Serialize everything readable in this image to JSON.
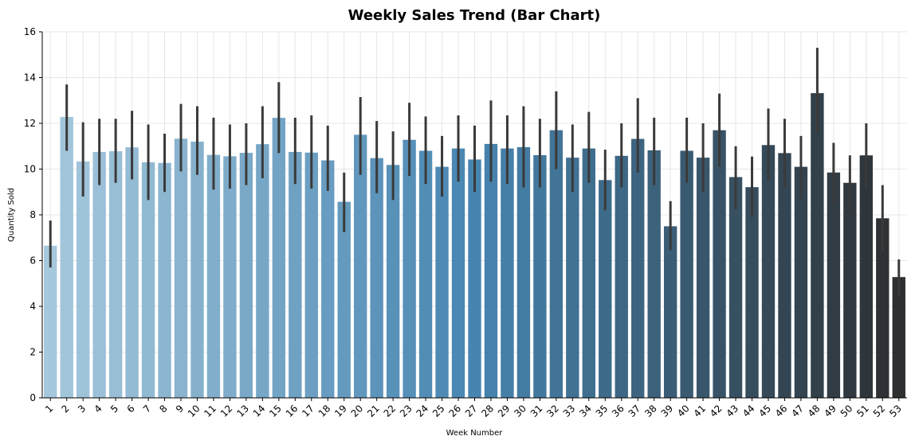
{
  "chart_data": {
    "type": "bar",
    "title": "Weekly Sales Trend (Bar Chart)",
    "xlabel": "Week Number",
    "ylabel": "Quantity Sold",
    "ylim": [
      0,
      16
    ],
    "yticks": [
      0,
      2,
      4,
      6,
      8,
      10,
      12,
      14,
      16
    ],
    "grid": true,
    "palette": [
      "#a6c8dc",
      "#4785b1",
      "#2d2f31"
    ],
    "categories": [
      "1",
      "2",
      "3",
      "4",
      "5",
      "6",
      "7",
      "8",
      "9",
      "10",
      "11",
      "12",
      "13",
      "14",
      "15",
      "16",
      "17",
      "18",
      "19",
      "20",
      "21",
      "22",
      "23",
      "24",
      "25",
      "26",
      "27",
      "28",
      "29",
      "30",
      "31",
      "32",
      "33",
      "34",
      "35",
      "36",
      "37",
      "38",
      "39",
      "40",
      "41",
      "42",
      "43",
      "44",
      "45",
      "46",
      "47",
      "48",
      "49",
      "50",
      "51",
      "52",
      "53"
    ],
    "values": [
      6.65,
      12.28,
      10.33,
      10.75,
      10.78,
      10.95,
      10.3,
      10.27,
      11.33,
      11.2,
      10.62,
      10.56,
      10.71,
      11.09,
      12.24,
      10.75,
      10.72,
      10.38,
      8.57,
      11.5,
      10.48,
      10.18,
      11.28,
      10.8,
      10.1,
      10.9,
      10.42,
      11.1,
      10.9,
      10.96,
      10.61,
      11.7,
      10.5,
      10.9,
      9.52,
      10.58,
      11.32,
      10.82,
      7.5,
      10.8,
      10.5,
      11.7,
      9.65,
      9.21,
      11.05,
      10.7,
      10.1,
      13.32,
      9.85,
      9.4,
      10.6,
      7.85,
      5.28
    ],
    "error_low": [
      5.7,
      10.8,
      8.8,
      9.3,
      9.4,
      9.55,
      8.65,
      9.0,
      9.9,
      9.75,
      9.1,
      9.15,
      9.3,
      9.6,
      10.7,
      9.35,
      9.15,
      9.05,
      7.25,
      9.75,
      8.95,
      8.65,
      9.7,
      9.35,
      8.8,
      9.45,
      9.0,
      9.45,
      9.35,
      9.2,
      9.2,
      10.0,
      9.0,
      9.4,
      8.2,
      9.2,
      9.85,
      9.3,
      6.45,
      9.4,
      9.0,
      10.1,
      8.25,
      7.9,
      9.5,
      9.25,
      8.7,
      11.6,
      8.5,
      8.2,
      9.2,
      6.4,
      4.45
    ],
    "error_high": [
      7.75,
      13.7,
      12.05,
      12.2,
      12.2,
      12.55,
      11.95,
      11.55,
      12.85,
      12.75,
      12.25,
      11.95,
      12.0,
      12.75,
      13.8,
      12.25,
      12.35,
      11.9,
      9.85,
      13.15,
      12.1,
      11.65,
      12.9,
      12.3,
      11.45,
      12.35,
      11.9,
      13.0,
      12.35,
      12.75,
      12.2,
      13.4,
      11.95,
      12.5,
      10.85,
      12.0,
      13.1,
      12.25,
      8.6,
      12.25,
      12.0,
      13.3,
      11.0,
      10.55,
      12.65,
      12.2,
      11.45,
      15.3,
      11.15,
      10.6,
      12.0,
      9.3,
      6.05
    ]
  }
}
